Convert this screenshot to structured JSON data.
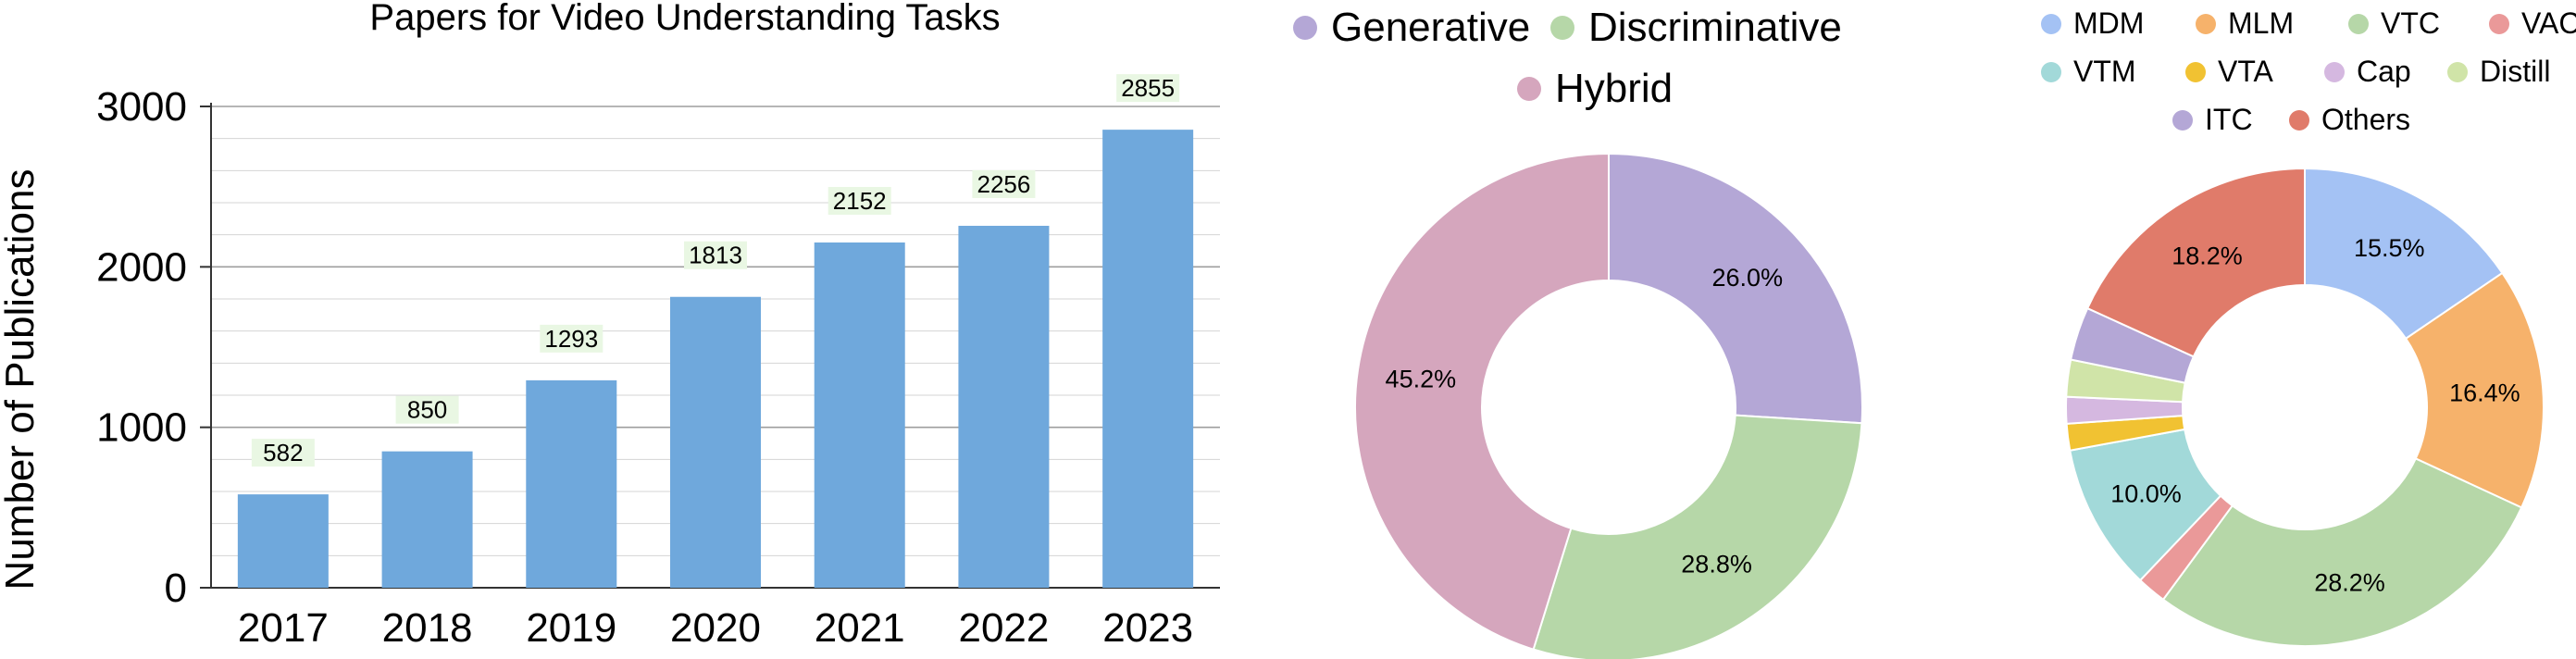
{
  "chart_data": [
    {
      "type": "bar",
      "title": "Papers for Video Understanding Tasks",
      "xlabel": "",
      "ylabel": "Number of Publications",
      "categories": [
        "2017",
        "2018",
        "2019",
        "2020",
        "2021",
        "2022",
        "2023"
      ],
      "values": [
        582,
        850,
        1293,
        1813,
        2152,
        2256,
        2855
      ],
      "ylim": [
        0,
        3000
      ],
      "yticks": [
        0,
        1000,
        2000,
        3000
      ],
      "grid": true,
      "bar_color": "#6fa8dc",
      "data_label_bg": "#e9f7e3"
    },
    {
      "type": "pie",
      "style": "donut",
      "legend": [
        "Generative",
        "Discriminative",
        "Hybrid"
      ],
      "legend_position": "top",
      "slices": [
        {
          "name": "Generative",
          "value": 26.0,
          "label": "26.0%",
          "color": "#b4a7d6"
        },
        {
          "name": "Discriminative",
          "value": 28.8,
          "label": "28.8%",
          "color": "#b6d7a8"
        },
        {
          "name": "Hybrid",
          "value": 45.2,
          "label": "45.2%",
          "color": "#d5a6bd"
        }
      ]
    },
    {
      "type": "pie",
      "style": "donut",
      "legend": [
        "MDM",
        "MLM",
        "VTC",
        "VAC",
        "VTM",
        "VTA",
        "Cap",
        "Distill",
        "ITC",
        "Others"
      ],
      "legend_position": "top",
      "slices": [
        {
          "name": "MDM",
          "value": 15.5,
          "label": "15.5%",
          "color": "#a4c2f4"
        },
        {
          "name": "MLM",
          "value": 16.4,
          "label": "16.4%",
          "color": "#f6b26b"
        },
        {
          "name": "VTC",
          "value": 28.2,
          "label": "28.2%",
          "color": "#b6d7a8"
        },
        {
          "name": "VAC",
          "value": 2.0,
          "label": "",
          "color": "#ea9999"
        },
        {
          "name": "VTM",
          "value": 10.0,
          "label": "10.0%",
          "color": "#a2d9d9"
        },
        {
          "name": "VTA",
          "value": 1.8,
          "label": "",
          "color": "#f1c232"
        },
        {
          "name": "Cap",
          "value": 1.8,
          "label": "",
          "color": "#d5b8e0"
        },
        {
          "name": "Distill",
          "value": 2.5,
          "label": "",
          "color": "#d0e4a8"
        },
        {
          "name": "ITC",
          "value": 3.6,
          "label": "",
          "color": "#b4a7d6"
        },
        {
          "name": "Others",
          "value": 18.2,
          "label": "18.2%",
          "color": "#e07b6a"
        }
      ]
    }
  ]
}
